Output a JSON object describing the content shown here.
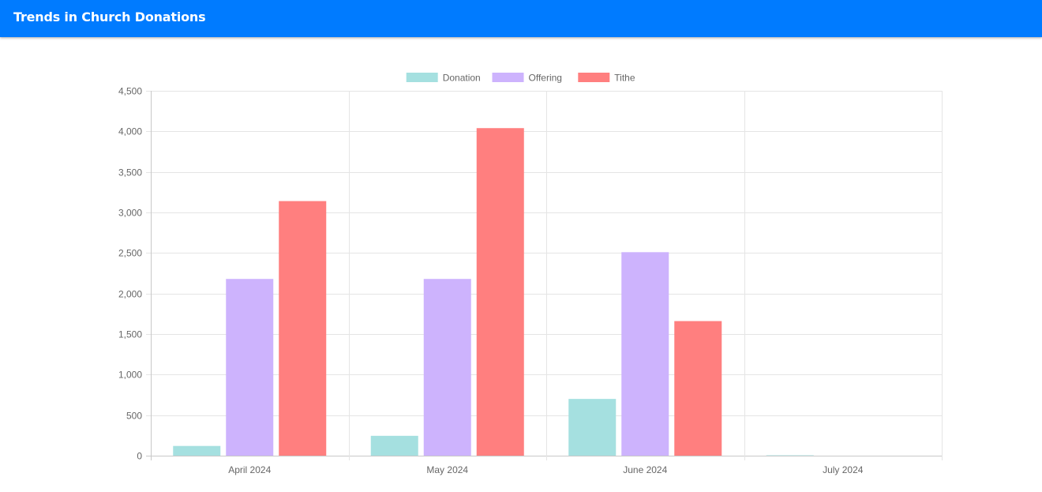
{
  "header": {
    "title": "Trends in Church Donations"
  },
  "colors": {
    "header_bg": "#007bff",
    "Donation": "#a5e0e0",
    "Offering": "#cdb3fd",
    "Tithe": "#ff7f7f",
    "grid": "#e5e5e5",
    "tick_text": "#666666"
  },
  "chart_data": {
    "type": "bar",
    "categories": [
      "April 2024",
      "May 2024",
      "June 2024",
      "July 2024"
    ],
    "series": [
      {
        "name": "Donation",
        "values": [
          120,
          245,
          700,
          5
        ]
      },
      {
        "name": "Offering",
        "values": [
          2180,
          2180,
          2510,
          0
        ]
      },
      {
        "name": "Tithe",
        "values": [
          3140,
          4040,
          1660,
          0
        ]
      }
    ],
    "ylim": [
      0,
      4500
    ],
    "yticks": [
      0,
      500,
      1000,
      1500,
      2000,
      2500,
      3000,
      3500,
      4000,
      4500
    ],
    "ytick_labels": [
      "0",
      "500",
      "1,000",
      "1,500",
      "2,000",
      "2,500",
      "3,000",
      "3,500",
      "4,000",
      "4,500"
    ],
    "grid": true,
    "legend": "top-center",
    "xlabel": "",
    "ylabel": "",
    "title": ""
  }
}
